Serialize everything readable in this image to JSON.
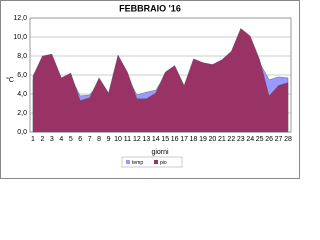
{
  "chart_data": {
    "type": "area",
    "title": "FEBBRAIO  '16",
    "x_label": "giorni",
    "y_label": "°C",
    "categories": [
      "1",
      "2",
      "3",
      "4",
      "5",
      "6",
      "7",
      "8",
      "9",
      "10",
      "11",
      "12",
      "13",
      "14",
      "15",
      "16",
      "17",
      "18",
      "19",
      "20",
      "21",
      "22",
      "23",
      "24",
      "25",
      "26",
      "27",
      "28"
    ],
    "series": [
      {
        "name": "temp",
        "color": "#9999ff",
        "values": [
          5.5,
          7.5,
          7.8,
          5.3,
          5.8,
          3.8,
          3.9,
          5.2,
          3.9,
          7.5,
          5.8,
          3.9,
          4.2,
          4.4,
          6.0,
          6.6,
          4.6,
          7.3,
          6.9,
          6.8,
          7.2,
          8.0,
          10.4,
          9.6,
          7.3,
          5.5,
          5.8,
          5.7
        ]
      },
      {
        "name": "pio",
        "color": "#993366",
        "values": [
          5.9,
          8.0,
          8.2,
          5.7,
          6.2,
          3.3,
          3.6,
          5.7,
          4.1,
          8.1,
          6.3,
          3.5,
          3.5,
          4.1,
          6.3,
          7.0,
          4.9,
          7.7,
          7.3,
          7.1,
          7.6,
          8.5,
          10.9,
          10.1,
          7.6,
          3.8,
          4.9,
          5.2
        ]
      }
    ],
    "ylim": [
      0,
      12
    ],
    "yticks": [
      {
        "value": 0,
        "label": "0,0"
      },
      {
        "value": 2,
        "label": "2,0"
      },
      {
        "value": 4,
        "label": "4,0"
      },
      {
        "value": 6,
        "label": "6,0"
      },
      {
        "value": 8,
        "label": "8,0"
      },
      {
        "value": 10,
        "label": "10,0"
      },
      {
        "value": 12,
        "label": "12,0"
      }
    ],
    "grid": true
  }
}
